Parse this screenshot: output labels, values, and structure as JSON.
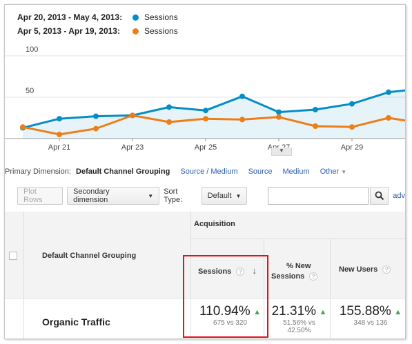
{
  "legend": [
    {
      "range": "Apr 20, 2013 - May 4, 2013:",
      "label": "Sessions",
      "color": "#058dc7"
    },
    {
      "range": "Apr 5, 2013 - Apr 19, 2013:",
      "label": "Sessions",
      "color": "#ed7e17"
    }
  ],
  "chart_data": {
    "type": "line",
    "y_ticks": [
      "100",
      "50"
    ],
    "ylim": [
      0,
      100
    ],
    "x_tick_labels": [
      "Apr 21",
      "Apr 23",
      "Apr 25",
      "Apr 27",
      "Apr 29"
    ],
    "x": [
      "Apr 20",
      "Apr 21",
      "Apr 22",
      "Apr 23",
      "Apr 24",
      "Apr 25",
      "Apr 26",
      "Apr 27",
      "Apr 28",
      "Apr 29",
      "Apr 30",
      "May 1"
    ],
    "series": [
      {
        "name": "Sessions",
        "color": "#058dc7",
        "values": [
          13,
          24,
          27,
          28,
          38,
          34,
          51,
          32,
          35,
          42,
          56,
          61
        ],
        "area": true
      },
      {
        "name": "Sessions",
        "color": "#ed7e17",
        "values": [
          14,
          5,
          12,
          28,
          20,
          24,
          23,
          26,
          15,
          14,
          25,
          18
        ]
      }
    ]
  },
  "primary_dimension": {
    "label": "Primary Dimension:",
    "selected": "Default Channel Grouping",
    "options": [
      "Source / Medium",
      "Source",
      "Medium",
      "Other"
    ]
  },
  "toolbar": {
    "plot_rows": "Plot Rows",
    "secondary_dimension": "Secondary dimension",
    "sort_type_label": "Sort Type:",
    "sort_type_value": "Default",
    "search_value": "",
    "advanced": "adv"
  },
  "table": {
    "group_header": "Acquisition",
    "col_dimension": "Default Channel Grouping",
    "col_sessions": "Sessions",
    "col_new_sessions_1": "% New",
    "col_new_sessions_2": "Sessions",
    "col_new_users": "New Users",
    "row": {
      "name": "Organic Traffic",
      "sessions_pct": "110.94%",
      "sessions_sub": "675 vs 320",
      "new_sessions_pct": "21.31%",
      "new_sessions_sub_1": "51.56% vs",
      "new_sessions_sub_2": "42.50%",
      "new_users_pct": "155.88%",
      "new_users_sub": "348 vs 136"
    }
  },
  "colors": {
    "accent_blue": "#058dc7",
    "accent_orange": "#ed7e17",
    "up_arrow": "#3fa84b",
    "highlight_box": "#e1121a",
    "link": "#2a5db0"
  }
}
